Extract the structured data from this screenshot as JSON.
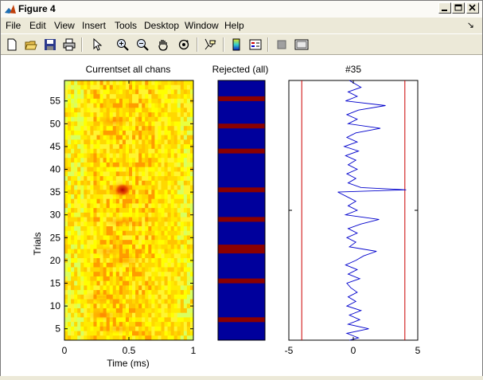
{
  "window": {
    "title": "Figure 4"
  },
  "menu": [
    "File",
    "Edit",
    "View",
    "Insert",
    "Tools",
    "Desktop",
    "Window",
    "Help"
  ],
  "toolbar": [
    "new-figure-icon",
    "open-file-icon",
    "save-icon",
    "print-icon",
    "select-arrow-icon",
    "zoom-in-icon",
    "zoom-out-icon",
    "pan-hand-icon",
    "rotate-3d-icon",
    "data-cursor-icon",
    "colorbar-icon",
    "legend-icon",
    "hide-plot-tools-icon",
    "show-plot-tools-icon"
  ],
  "colors": {
    "reject_background": "#00009c",
    "reject_band": "#8b0000",
    "threshold_line": "#cc0000",
    "trace_line": "#0000cc"
  },
  "chart_data": [
    {
      "type": "heatmap",
      "title": "Currentset all chans",
      "xlabel": "Time (ms)",
      "ylabel": "Trials",
      "xlim": [
        0,
        1
      ],
      "ylim": [
        2.5,
        59.5
      ],
      "xticks": [
        "0",
        "0.5",
        "1"
      ],
      "yticks": [
        "5",
        "10",
        "15",
        "20",
        "25",
        "30",
        "35",
        "40",
        "45",
        "50",
        "55"
      ],
      "hotspots": [
        {
          "trial": 35.5,
          "time": 0.45,
          "level": 1.0
        },
        {
          "trial": 28.5,
          "time": 0.45,
          "level": 0.45
        },
        {
          "trial": 50.5,
          "time": 0.38,
          "level": 0.4
        },
        {
          "trial": 8,
          "time": 0.3,
          "level": 0.35
        },
        {
          "trial": 20,
          "time": 0.47,
          "level": 0.35
        },
        {
          "trial": 22,
          "time": 0.35,
          "level": 0.3
        },
        {
          "trial": 12,
          "time": 0.28,
          "level": 0.3
        },
        {
          "trial": 5,
          "time": 0.42,
          "level": 0.3
        }
      ]
    },
    {
      "type": "heatmap",
      "title": "Rejected (all)",
      "ylim": [
        2.5,
        59.5
      ],
      "rejected_trials": [
        7,
        15.5,
        22.5,
        29,
        35.5,
        44,
        49.5,
        55.5
      ]
    },
    {
      "type": "line",
      "title": "#35",
      "xlim": [
        -5,
        5
      ],
      "xticks": [
        "-5",
        "0",
        "5"
      ],
      "thresholds": [
        -4,
        4
      ],
      "ylim": [
        2.5,
        59.5
      ],
      "series": [
        {
          "y": [
            2.5,
            3,
            4,
            5,
            6,
            7,
            8,
            9,
            10,
            11,
            12,
            13,
            14,
            15,
            16,
            17,
            18,
            19,
            20,
            21,
            22,
            23,
            24,
            25,
            26,
            27,
            28,
            29,
            30,
            31,
            32,
            33,
            34,
            35,
            35.5,
            36,
            37,
            38,
            39,
            40,
            41,
            42,
            43,
            44,
            45,
            46,
            47,
            48,
            49,
            50,
            51,
            52,
            53,
            54,
            55,
            56,
            57,
            58,
            59.5
          ],
          "x": [
            -0.3,
            0.4,
            -0.5,
            1.2,
            -0.4,
            0.5,
            -0.3,
            0.6,
            -0.5,
            0.2,
            -0.4,
            0.3,
            -0.2,
            -0.5,
            0.5,
            -0.4,
            0.3,
            -0.6,
            0.2,
            0.8,
            1.8,
            -0.3,
            0.2,
            -0.5,
            0.3,
            -0.4,
            0.6,
            2.0,
            -0.6,
            0.3,
            -0.4,
            0.2,
            -0.5,
            -1.2,
            4.1,
            0.6,
            -0.4,
            0.2,
            -0.5,
            0.3,
            -0.4,
            0.2,
            -0.6,
            0.4,
            -0.7,
            0.3,
            -0.5,
            0.2,
            2.1,
            -0.4,
            0.3,
            -0.5,
            0.4,
            2.5,
            -0.6,
            0.3,
            -0.4,
            0.6,
            -0.3
          ]
        }
      ]
    }
  ]
}
